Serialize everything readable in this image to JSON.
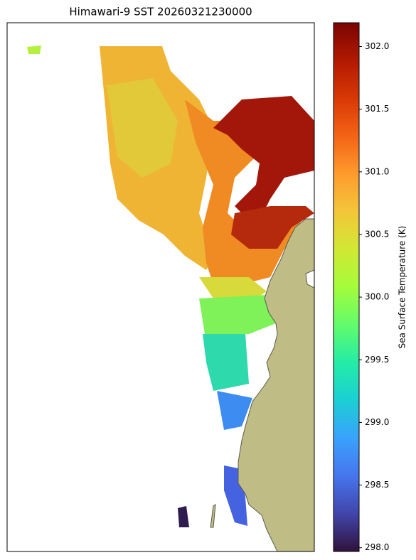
{
  "chart_data": {
    "type": "map",
    "title": "Himawari-9 SST 20260321230000",
    "colorbar_label": "Sea Surface Temperature (K)",
    "colormap": "turbo",
    "clim": [
      297.97,
      302.19
    ],
    "cticks": [
      {
        "value": 298,
        "label": "298.0"
      },
      298.5,
      {
        "value": 299,
        "label": "299.0"
      },
      299.5,
      {
        "value": 300,
        "label": "300.0"
      },
      300.5,
      {
        "value": 301,
        "label": "301.0"
      },
      301.5,
      {
        "value": 302,
        "label": "302.0"
      }
    ]
  }
}
